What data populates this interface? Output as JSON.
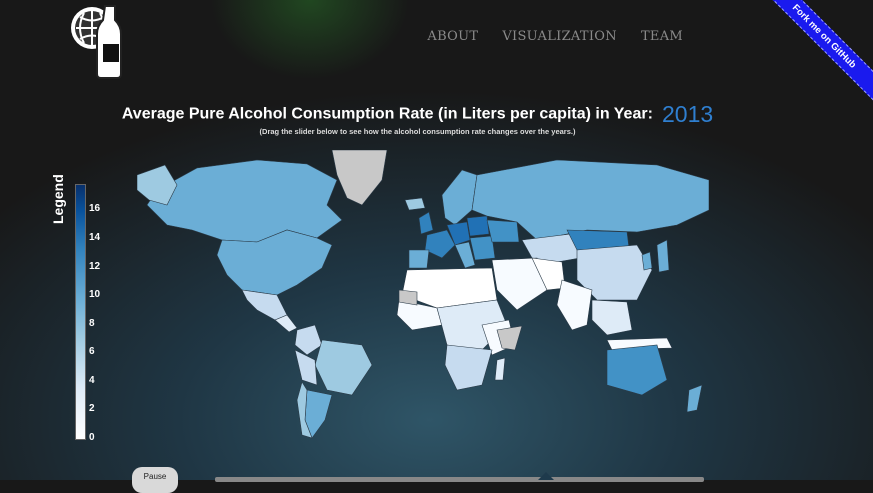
{
  "header": {
    "logo_icon": "globe-bottle-logo",
    "nav": [
      "ABOUT",
      "VISUALIZATION",
      "TEAM"
    ],
    "ribbon": "Fork me on GitHub"
  },
  "main": {
    "title": "Average Pure Alcohol Consumption Rate (in Liters per capita) in Year:",
    "year": "2013",
    "subtitle": "(Drag the slider below to see how the alcohol consumption rate changes over the years.)"
  },
  "legend": {
    "title": "Legend",
    "labels": [
      "16",
      "14",
      "12",
      "10",
      "8",
      "6",
      "4",
      "2",
      "0"
    ]
  },
  "controls": {
    "pause_label": "Pause",
    "slider_value": "2013"
  },
  "colors": {
    "accent": "#2f7fd0",
    "no_data": "#c8c8c8",
    "scale_low": "#ffffff",
    "scale_high": "#08306b"
  }
}
